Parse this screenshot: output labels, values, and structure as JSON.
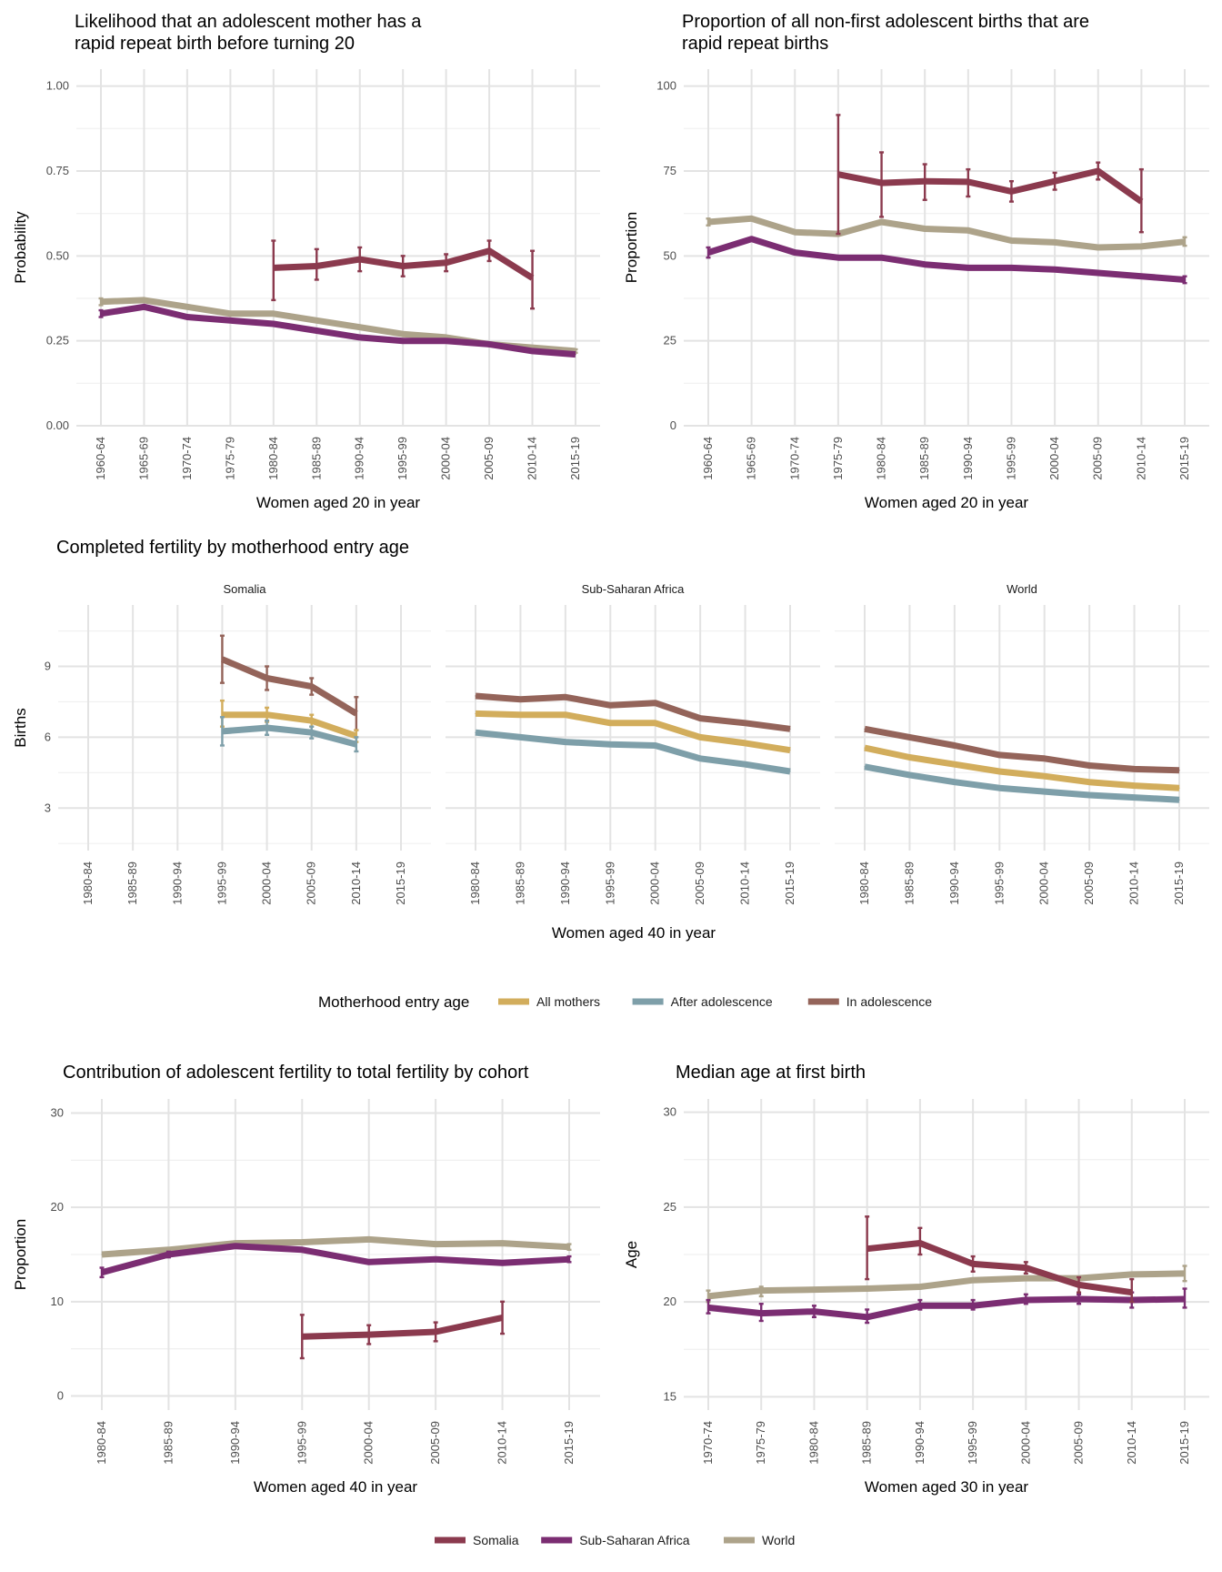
{
  "colors": {
    "Somalia": "#8b3a4e",
    "Sub-Saharan Africa": "#7b2d72",
    "World": "#ada38a",
    "All mothers": "#d2ad5c",
    "After adolescence": "#7e9fa9",
    "In adolescence": "#94645a"
  },
  "legend_top": {
    "title": "Motherhood entry age",
    "items": [
      "All mothers",
      "After adolescence",
      "In adolescence"
    ]
  },
  "legend_bottom": {
    "items": [
      "Somalia",
      "Sub-Saharan Africa",
      "World"
    ]
  },
  "chart_data": [
    {
      "id": "p1",
      "type": "line",
      "title": "Likelihood that an adolescent mother has a rapid repeat birth before turning 20",
      "xlabel": "Women aged 20 in year",
      "ylabel": "Probability",
      "categories": [
        "1960-64",
        "1965-69",
        "1970-74",
        "1975-79",
        "1980-84",
        "1985-89",
        "1990-94",
        "1995-99",
        "2000-04",
        "2005-09",
        "2010-14",
        "2015-19"
      ],
      "ylim": [
        0,
        1.05
      ],
      "yticks": [
        0,
        0.25,
        0.5,
        0.75,
        1.0
      ],
      "ytick_labels": [
        "0.00",
        "0.25",
        "0.50",
        "0.75",
        "1.00"
      ],
      "series": [
        {
          "name": "World",
          "values": [
            0.365,
            0.37,
            0.35,
            0.33,
            0.33,
            0.31,
            0.29,
            0.27,
            0.26,
            0.24,
            0.23,
            0.22
          ],
          "err": [
            [
              0.355,
              0.375
            ],
            null,
            null,
            null,
            null,
            null,
            null,
            null,
            null,
            [
              0.235,
              0.245
            ],
            null,
            [
              0.215,
              0.225
            ]
          ]
        },
        {
          "name": "Sub-Saharan Africa",
          "values": [
            0.33,
            0.35,
            0.32,
            0.31,
            0.3,
            0.28,
            0.26,
            0.25,
            0.25,
            0.24,
            0.22,
            0.21
          ],
          "err": [
            [
              0.32,
              0.34
            ],
            null,
            null,
            null,
            null,
            null,
            null,
            null,
            null,
            null,
            null,
            null
          ]
        },
        {
          "name": "Somalia",
          "values": [
            null,
            null,
            null,
            null,
            0.465,
            0.47,
            0.49,
            0.47,
            0.48,
            0.515,
            0.435,
            null
          ],
          "err": [
            null,
            null,
            null,
            null,
            [
              0.37,
              0.545
            ],
            [
              0.43,
              0.52
            ],
            [
              0.455,
              0.525
            ],
            [
              0.44,
              0.5
            ],
            [
              0.455,
              0.505
            ],
            [
              0.485,
              0.545
            ],
            [
              0.345,
              0.515
            ],
            null
          ]
        }
      ]
    },
    {
      "id": "p2",
      "type": "line",
      "title": "Proportion of all non-first adolescent births that are rapid repeat births",
      "xlabel": "Women aged 20 in year",
      "ylabel": "Proportion",
      "categories": [
        "1960-64",
        "1965-69",
        "1970-74",
        "1975-79",
        "1980-84",
        "1985-89",
        "1990-94",
        "1995-99",
        "2000-04",
        "2005-09",
        "2010-14",
        "2015-19"
      ],
      "ylim": [
        0,
        105
      ],
      "yticks": [
        0,
        25,
        50,
        75,
        100
      ],
      "ytick_labels": [
        "0",
        "25",
        "50",
        "75",
        "100"
      ],
      "series": [
        {
          "name": "World",
          "values": [
            60,
            61,
            57,
            56.5,
            60,
            58,
            57.5,
            54.5,
            54,
            52.5,
            52.8,
            54.2
          ],
          "err": [
            [
              59,
              61
            ],
            null,
            null,
            null,
            null,
            null,
            null,
            null,
            null,
            null,
            null,
            [
              53,
              55.5
            ]
          ]
        },
        {
          "name": "Sub-Saharan Africa",
          "values": [
            51,
            55,
            51,
            49.5,
            49.5,
            47.5,
            46.5,
            46.5,
            46,
            45,
            44,
            43
          ],
          "err": [
            [
              49.5,
              52.5
            ],
            null,
            null,
            null,
            null,
            null,
            null,
            null,
            null,
            null,
            null,
            [
              42,
              44
            ]
          ]
        },
        {
          "name": "Somalia",
          "values": [
            null,
            null,
            null,
            74,
            71.5,
            72,
            71.8,
            69,
            72,
            75,
            66,
            null
          ],
          "err": [
            null,
            null,
            null,
            [
              56.5,
              91.5
            ],
            [
              61.5,
              80.5
            ],
            [
              66.5,
              77
            ],
            [
              67.5,
              75.5
            ],
            [
              66,
              72
            ],
            [
              69.5,
              74.5
            ],
            [
              72.5,
              77.5
            ],
            [
              57,
              75.5
            ],
            null
          ]
        }
      ]
    },
    {
      "id": "p3",
      "type": "line",
      "title": "Completed fertility by motherhood entry age",
      "xlabel": "Women aged 40 in year",
      "ylabel": "Births",
      "categories": [
        "1980-84",
        "1985-89",
        "1990-94",
        "1995-99",
        "2000-04",
        "2005-09",
        "2010-14",
        "2015-19"
      ],
      "ylim": [
        1.2,
        11.6
      ],
      "yticks": [
        3,
        6,
        9
      ],
      "ytick_labels": [
        "3",
        "6",
        "9"
      ],
      "facets": [
        {
          "name": "Somalia",
          "series": [
            {
              "name": "In adolescence",
              "values": [
                null,
                null,
                null,
                9.3,
                8.5,
                8.15,
                7.0,
                null
              ],
              "err": [
                null,
                null,
                null,
                [
                  8.3,
                  10.3
                ],
                [
                  8.0,
                  9.0
                ],
                [
                  7.8,
                  8.5
                ],
                [
                  6.3,
                  7.7
                ],
                null
              ]
            },
            {
              "name": "All mothers",
              "values": [
                null,
                null,
                null,
                6.95,
                6.95,
                6.7,
                6.05,
                null
              ],
              "err": [
                null,
                null,
                null,
                [
                  6.45,
                  7.55
                ],
                [
                  6.65,
                  7.25
                ],
                [
                  6.45,
                  6.95
                ],
                [
                  5.8,
                  6.3
                ],
                null
              ]
            },
            {
              "name": "After adolescence",
              "values": [
                null,
                null,
                null,
                6.25,
                6.4,
                6.2,
                5.7,
                null
              ],
              "err": [
                null,
                null,
                null,
                [
                  5.65,
                  6.85
                ],
                [
                  6.1,
                  6.7
                ],
                [
                  5.95,
                  6.45
                ],
                [
                  5.4,
                  6.0
                ],
                null
              ]
            }
          ]
        },
        {
          "name": "Sub-Saharan Africa",
          "series": [
            {
              "name": "In adolescence",
              "values": [
                7.75,
                7.6,
                7.7,
                7.35,
                7.45,
                6.8,
                6.6,
                6.35
              ],
              "err": null
            },
            {
              "name": "All mothers",
              "values": [
                7.0,
                6.95,
                6.95,
                6.6,
                6.6,
                6.0,
                5.75,
                5.45
              ],
              "err": null
            },
            {
              "name": "After adolescence",
              "values": [
                6.2,
                6.0,
                5.8,
                5.7,
                5.65,
                5.1,
                4.85,
                4.55
              ],
              "err": null
            }
          ]
        },
        {
          "name": "World",
          "series": [
            {
              "name": "In adolescence",
              "values": [
                6.35,
                6.0,
                5.65,
                5.25,
                5.1,
                4.8,
                4.65,
                4.6
              ],
              "err": null
            },
            {
              "name": "All mothers",
              "values": [
                5.55,
                5.15,
                4.85,
                4.55,
                4.35,
                4.1,
                3.95,
                3.85
              ],
              "err": null
            },
            {
              "name": "After adolescence",
              "values": [
                4.75,
                4.4,
                4.1,
                3.85,
                3.7,
                3.55,
                3.45,
                3.35
              ],
              "err": null
            }
          ]
        }
      ]
    },
    {
      "id": "p4",
      "type": "line",
      "title": "Contribution of adolescent fertility to total fertility by cohort",
      "xlabel": "Women aged 40 in year",
      "ylabel": "Proportion",
      "categories": [
        "1980-84",
        "1985-89",
        "1990-94",
        "1995-99",
        "2000-04",
        "2005-09",
        "2010-14",
        "2015-19"
      ],
      "ylim": [
        -1.5,
        31.5
      ],
      "yticks": [
        0,
        10,
        20,
        30
      ],
      "ytick_labels": [
        "0",
        "10",
        "20",
        "30"
      ],
      "series": [
        {
          "name": "World",
          "values": [
            15.0,
            15.5,
            16.2,
            16.3,
            16.6,
            16.1,
            16.2,
            15.8
          ],
          "err": [
            null,
            null,
            null,
            null,
            null,
            null,
            null,
            [
              15.5,
              16.1
            ]
          ]
        },
        {
          "name": "Sub-Saharan Africa",
          "values": [
            13.1,
            15.0,
            15.9,
            15.5,
            14.2,
            14.5,
            14.1,
            14.5
          ],
          "err": [
            [
              12.6,
              13.6
            ],
            [
              14.7,
              15.3
            ],
            null,
            null,
            null,
            null,
            null,
            [
              14.2,
              14.8
            ]
          ]
        },
        {
          "name": "Somalia",
          "values": [
            null,
            null,
            null,
            6.3,
            6.5,
            6.8,
            8.3,
            null
          ],
          "err": [
            null,
            null,
            null,
            [
              4.0,
              8.6
            ],
            [
              5.5,
              7.5
            ],
            [
              5.8,
              7.8
            ],
            [
              6.6,
              10.0
            ],
            null
          ]
        }
      ]
    },
    {
      "id": "p5",
      "type": "line",
      "title": "Median age at first birth",
      "xlabel": "Women aged 30 in year",
      "ylabel": "Age",
      "categories": [
        "1970-74",
        "1975-79",
        "1980-84",
        "1985-89",
        "1990-94",
        "1995-99",
        "2000-04",
        "2005-09",
        "2010-14",
        "2015-19"
      ],
      "ylim": [
        14.3,
        30.7
      ],
      "yticks": [
        15,
        20,
        25,
        30
      ],
      "ytick_labels": [
        "15",
        "20",
        "25",
        "30"
      ],
      "series": [
        {
          "name": "World",
          "values": [
            20.3,
            20.6,
            20.65,
            20.7,
            20.8,
            21.15,
            21.25,
            21.25,
            21.45,
            21.5
          ],
          "err": [
            [
              20.0,
              20.6
            ],
            [
              20.3,
              20.8
            ],
            null,
            null,
            null,
            null,
            null,
            null,
            null,
            [
              21.1,
              21.9
            ]
          ]
        },
        {
          "name": "Sub-Saharan Africa",
          "values": [
            19.7,
            19.4,
            19.5,
            19.2,
            19.8,
            19.8,
            20.1,
            20.15,
            20.1,
            20.15
          ],
          "err": [
            [
              19.4,
              20.1
            ],
            [
              19.0,
              19.9
            ],
            [
              19.2,
              19.8
            ],
            [
              18.9,
              19.6
            ],
            [
              19.6,
              20.1
            ],
            [
              19.6,
              20.1
            ],
            [
              19.9,
              20.4
            ],
            [
              19.9,
              20.4
            ],
            [
              19.7,
              20.5
            ],
            [
              19.7,
              20.7
            ]
          ]
        },
        {
          "name": "Somalia",
          "values": [
            null,
            null,
            null,
            22.8,
            23.1,
            22.0,
            21.8,
            20.9,
            20.5,
            null
          ],
          "err": [
            null,
            null,
            null,
            [
              21.2,
              24.5
            ],
            [
              22.5,
              23.9
            ],
            [
              21.6,
              22.4
            ],
            [
              21.5,
              22.1
            ],
            [
              20.5,
              21.3
            ],
            [
              20.0,
              21.2
            ],
            null
          ]
        }
      ]
    }
  ]
}
